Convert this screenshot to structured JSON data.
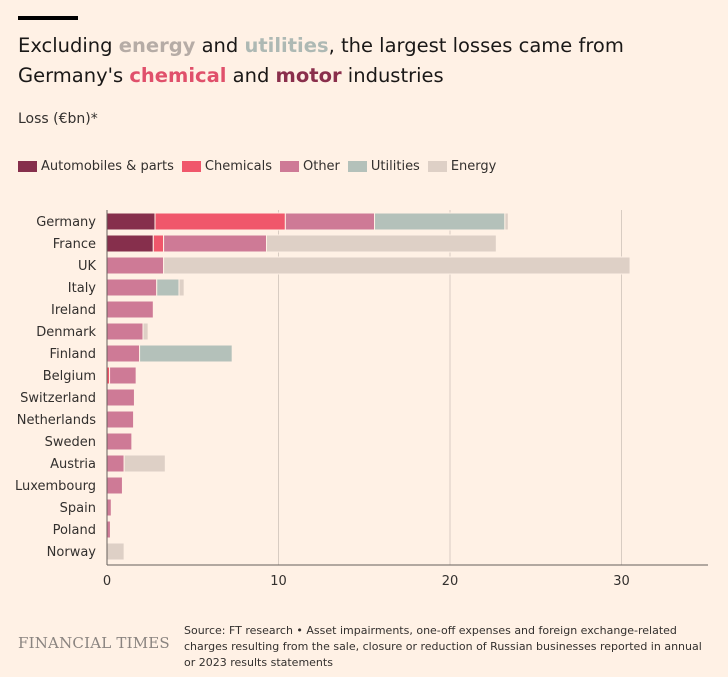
{
  "title_parts": {
    "p1": "Excluding ",
    "energy": "energy",
    "p2": " and ",
    "utilities": "utilities",
    "p3": ", the largest losses came from Germany's ",
    "chemical": "chemical",
    "p4": " and ",
    "motor": "motor",
    "p5": " industries"
  },
  "colors": {
    "automobiles": "#862F4C",
    "chemicals": "#F0576B",
    "other": "#CE7A96",
    "utilities": "#B4C1BA",
    "energy": "#DED0C6",
    "energy_text": "#B6ACA6",
    "utilities_text": "#AEB9B4",
    "chemical_text": "#E0506B",
    "motor_text": "#8A2F4C"
  },
  "footer": {
    "logo": "FINANCIAL TIMES",
    "source": "Source: FT research • Asset impairments, one-off expenses and foreign exchange-related charges resulting from the sale, closure or reduction of Russian businesses reported in annual or 2023 results statements"
  },
  "chart_data": {
    "type": "bar",
    "orientation": "horizontal",
    "stacked": true,
    "ylabel": "Loss (€bn)*",
    "xlim": [
      0,
      35
    ],
    "xticks": [
      0,
      10,
      20,
      30
    ],
    "grid": true,
    "legend_position": "top-left",
    "categories": [
      "Germany",
      "France",
      "UK",
      "Italy",
      "Ireland",
      "Denmark",
      "Finland",
      "Belgium",
      "Switzerland",
      "Netherlands",
      "Sweden",
      "Austria",
      "Luxembourg",
      "Spain",
      "Poland",
      "Norway"
    ],
    "series": [
      {
        "name": "Automobiles & parts",
        "key": "automobiles",
        "values": [
          2.8,
          2.7,
          0,
          0,
          0,
          0,
          0,
          0,
          0,
          0,
          0,
          0,
          0,
          0,
          0,
          0
        ]
      },
      {
        "name": "Chemicals",
        "key": "chemicals",
        "values": [
          7.6,
          0.6,
          0,
          0,
          0,
          0,
          0,
          0.15,
          0,
          0,
          0,
          0,
          0,
          0,
          0,
          0
        ]
      },
      {
        "name": "Other",
        "key": "other",
        "values": [
          5.2,
          6.0,
          3.3,
          2.9,
          2.7,
          2.1,
          1.9,
          1.55,
          1.6,
          1.55,
          1.45,
          1.0,
          0.9,
          0.25,
          0.2,
          0
        ]
      },
      {
        "name": "Utilities",
        "key": "utilities",
        "values": [
          7.6,
          0,
          0,
          1.3,
          0,
          0,
          5.4,
          0,
          0,
          0,
          0,
          0,
          0,
          0,
          0,
          0
        ]
      },
      {
        "name": "Energy",
        "key": "energy",
        "values": [
          0.2,
          13.4,
          27.2,
          0.3,
          0,
          0.3,
          0,
          0,
          0,
          0,
          0,
          2.4,
          0,
          0,
          0,
          1.0
        ]
      }
    ]
  }
}
